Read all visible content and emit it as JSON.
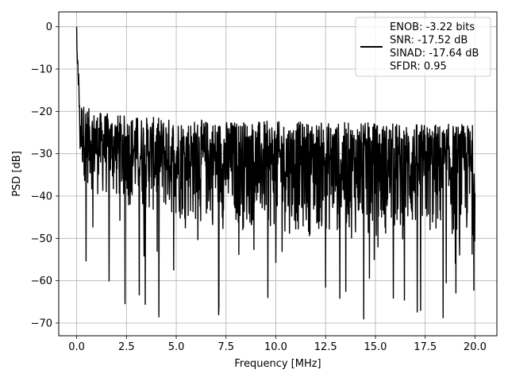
{
  "chart_data": {
    "type": "line",
    "title": "",
    "xlabel": "Frequency [MHz]",
    "ylabel": "PSD [dB]",
    "xlim": [
      -0.9,
      21.1
    ],
    "ylim": [
      -73,
      3.5
    ],
    "xticks": [
      0.0,
      2.5,
      5.0,
      7.5,
      10.0,
      12.5,
      15.0,
      17.5,
      20.0
    ],
    "xtick_labels": [
      "0.0",
      "2.5",
      "5.0",
      "7.5",
      "10.0",
      "12.5",
      "15.0",
      "17.5",
      "20.0"
    ],
    "yticks": [
      0,
      -10,
      -20,
      -30,
      -40,
      -50,
      -60,
      -70
    ],
    "ytick_labels": [
      "0",
      "−10",
      "−20",
      "−30",
      "−40",
      "−50",
      "−60",
      "−70"
    ],
    "grid": true,
    "legend_position": "top-right",
    "legend_lines": [
      "ENOB: -3.22 bits",
      "SNR: -17.52 dB",
      "SINAD: -17.64 dB",
      "SFDR: 0.95"
    ],
    "series": [
      {
        "color": "#000000",
        "peak": {
          "x": 0.0,
          "y": 0.0
        },
        "x_range": [
          0.0,
          20.0
        ],
        "upper_envelope_db": [
          -14,
          -20,
          -22,
          -23
        ],
        "lower_envelope_db": [
          -28,
          -40,
          -48,
          -52
        ],
        "min_observed_db": -69.5
      }
    ]
  }
}
